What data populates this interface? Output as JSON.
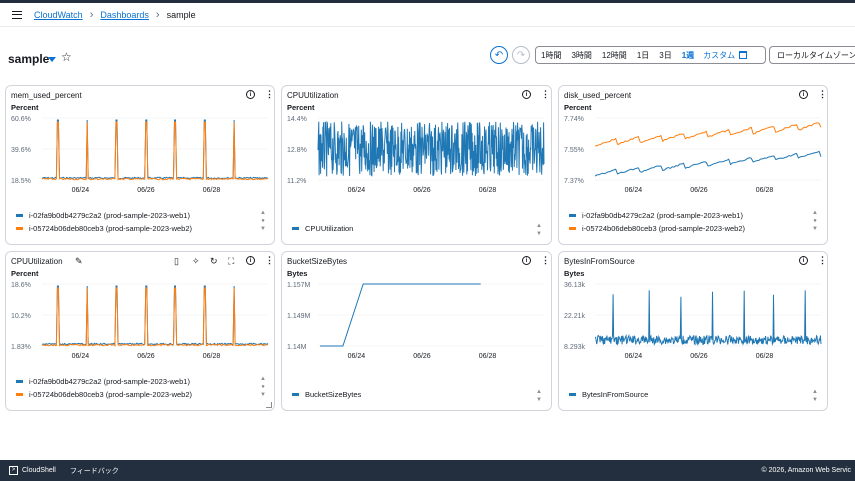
{
  "breadcrumbs": [
    "CloudWatch",
    "Dashboards",
    "sample"
  ],
  "dashboard": {
    "title": "sample"
  },
  "timerange": {
    "options": [
      "1時間",
      "3時間",
      "12時間",
      "1日",
      "3日",
      "1週"
    ],
    "active": "1週",
    "custom": "カスタム"
  },
  "timezone": "ローカルタイムゾーン",
  "colors": {
    "blue": "#1f77b4",
    "orange": "#ff7f0e",
    "link": "#0972d3"
  },
  "widgets": [
    {
      "title": "mem_used_percent",
      "unit": "Percent",
      "yticks": [
        "60.6%",
        "39.6%",
        "18.5%"
      ],
      "xticks": [
        "06/24",
        "06/26",
        "06/28"
      ],
      "legend": [
        "i-02fa9b0db4279c2a2 (prod-sample-2023-web1)",
        "i-05724b06deb80ceb3 (prod-sample-2023-web2)"
      ]
    },
    {
      "title": "CPUUtilization",
      "unit": "Percent",
      "yticks": [
        "14.4%",
        "12.8%",
        "11.2%"
      ],
      "xticks": [
        "06/24",
        "06/26",
        "06/28"
      ],
      "legend": [
        "CPUUtilization"
      ]
    },
    {
      "title": "disk_used_percent",
      "unit": "Percent",
      "yticks": [
        "7.74%",
        "7.55%",
        "7.37%"
      ],
      "xticks": [
        "06/24",
        "06/26",
        "06/28"
      ],
      "legend": [
        "i-02fa9b0db4279c2a2 (prod-sample-2023-web1)",
        "i-05724b06deb80ceb3 (prod-sample-2023-web2)"
      ]
    },
    {
      "title": "CPUUtilization",
      "unit": "Percent",
      "yticks": [
        "18.6%",
        "10.2%",
        "1.83%"
      ],
      "xticks": [
        "06/24",
        "06/26",
        "06/28"
      ],
      "legend": [
        "i-02fa9b0db4279c2a2 (prod-sample-2023-web1)",
        "i-05724b06deb80ceb3 (prod-sample-2023-web2)"
      ]
    },
    {
      "title": "BucketSizeBytes",
      "unit": "Bytes",
      "yticks": [
        "1.157M",
        "1.149M",
        "1.14M"
      ],
      "xticks": [
        "06/24",
        "06/26",
        "06/28"
      ],
      "legend": [
        "BucketSizeBytes"
      ]
    },
    {
      "title": "BytesInFromSource",
      "unit": "Bytes",
      "yticks": [
        "36.13k",
        "22.21k",
        "8.293k"
      ],
      "xticks": [
        "06/24",
        "06/26",
        "06/28"
      ],
      "legend": [
        "BytesInFromSource"
      ]
    }
  ],
  "footer": {
    "cloudshell": "CloudShell",
    "feedback": "フィードバック",
    "copyright": "© 2026, Amazon Web Servic"
  }
}
